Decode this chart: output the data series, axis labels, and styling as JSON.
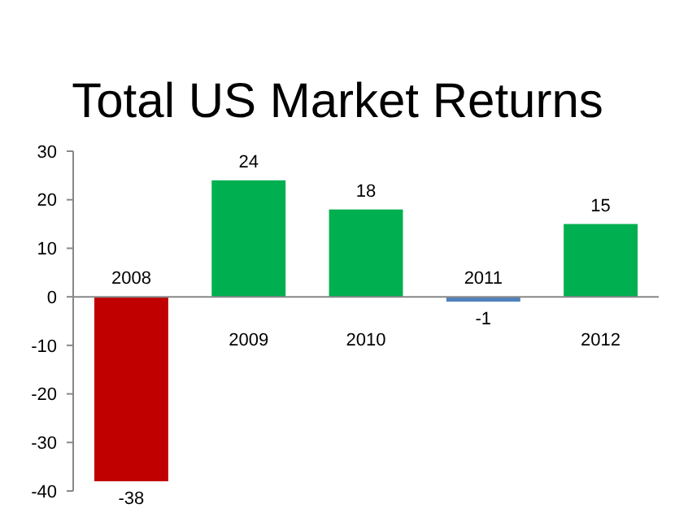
{
  "chart_data": {
    "type": "bar",
    "title": "Total US Market Returns",
    "categories": [
      "2008",
      "2009",
      "2010",
      "2011",
      "2012"
    ],
    "values": [
      -38,
      24,
      18,
      -1,
      15
    ],
    "colors": [
      "#c00000",
      "#00b050",
      "#00b050",
      "#4f81bd",
      "#00b050"
    ],
    "ylim": [
      -40,
      30
    ],
    "yticks": [
      -40,
      -30,
      -20,
      -10,
      0,
      10,
      20,
      30
    ],
    "data_labels": true
  }
}
